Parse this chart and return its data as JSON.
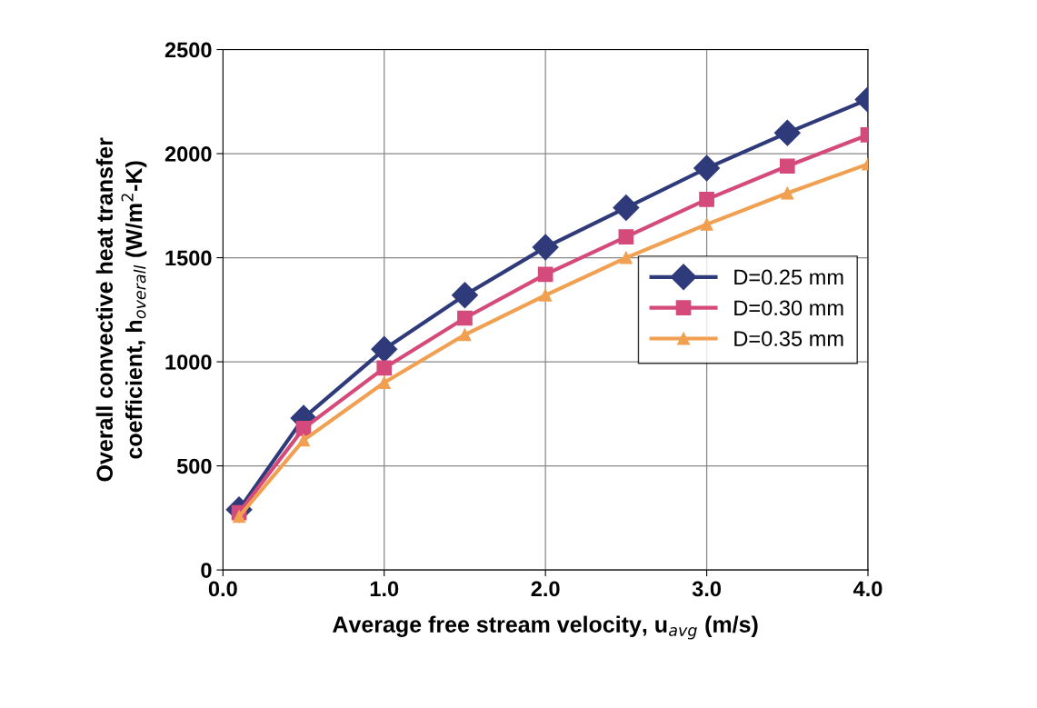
{
  "chart_data": {
    "type": "line",
    "xlabel": "Average free stream velocity, u$_{avg}$ (m/s)",
    "ylabel": "Overall convective heat transfer\ncoefficient, h$_{overall}$ (W/m$^{2}$-K)",
    "x": [
      0.1,
      0.5,
      1.0,
      1.5,
      2.0,
      2.5,
      3.0,
      3.5,
      4.0
    ],
    "series": [
      {
        "name": "D=0.25 mm",
        "color": "#2e3a7a",
        "marker": "diamond",
        "values": [
          290,
          730,
          1060,
          1320,
          1550,
          1740,
          1930,
          2100,
          2260
        ]
      },
      {
        "name": "D=0.30 mm",
        "color": "#d44a7a",
        "marker": "square",
        "values": [
          275,
          680,
          970,
          1210,
          1420,
          1600,
          1780,
          1940,
          2090
        ]
      },
      {
        "name": "D=0.35 mm",
        "color": "#f0a050",
        "marker": "triangle",
        "values": [
          257,
          623,
          900,
          1130,
          1320,
          1500,
          1660,
          1810,
          1950
        ]
      }
    ],
    "xlim": [
      0,
      4
    ],
    "ylim": [
      0,
      2500
    ],
    "xticks": [
      {
        "value": 0,
        "label": "0.0"
      },
      {
        "value": 1,
        "label": "1.0"
      },
      {
        "value": 2,
        "label": "2.0"
      },
      {
        "value": 3,
        "label": "3.0"
      },
      {
        "value": 4,
        "label": "4.0"
      }
    ],
    "yticks": [
      0,
      500,
      1000,
      1500,
      2000,
      2500
    ],
    "grid": true,
    "legend": "center right",
    "line_style": "solid"
  }
}
